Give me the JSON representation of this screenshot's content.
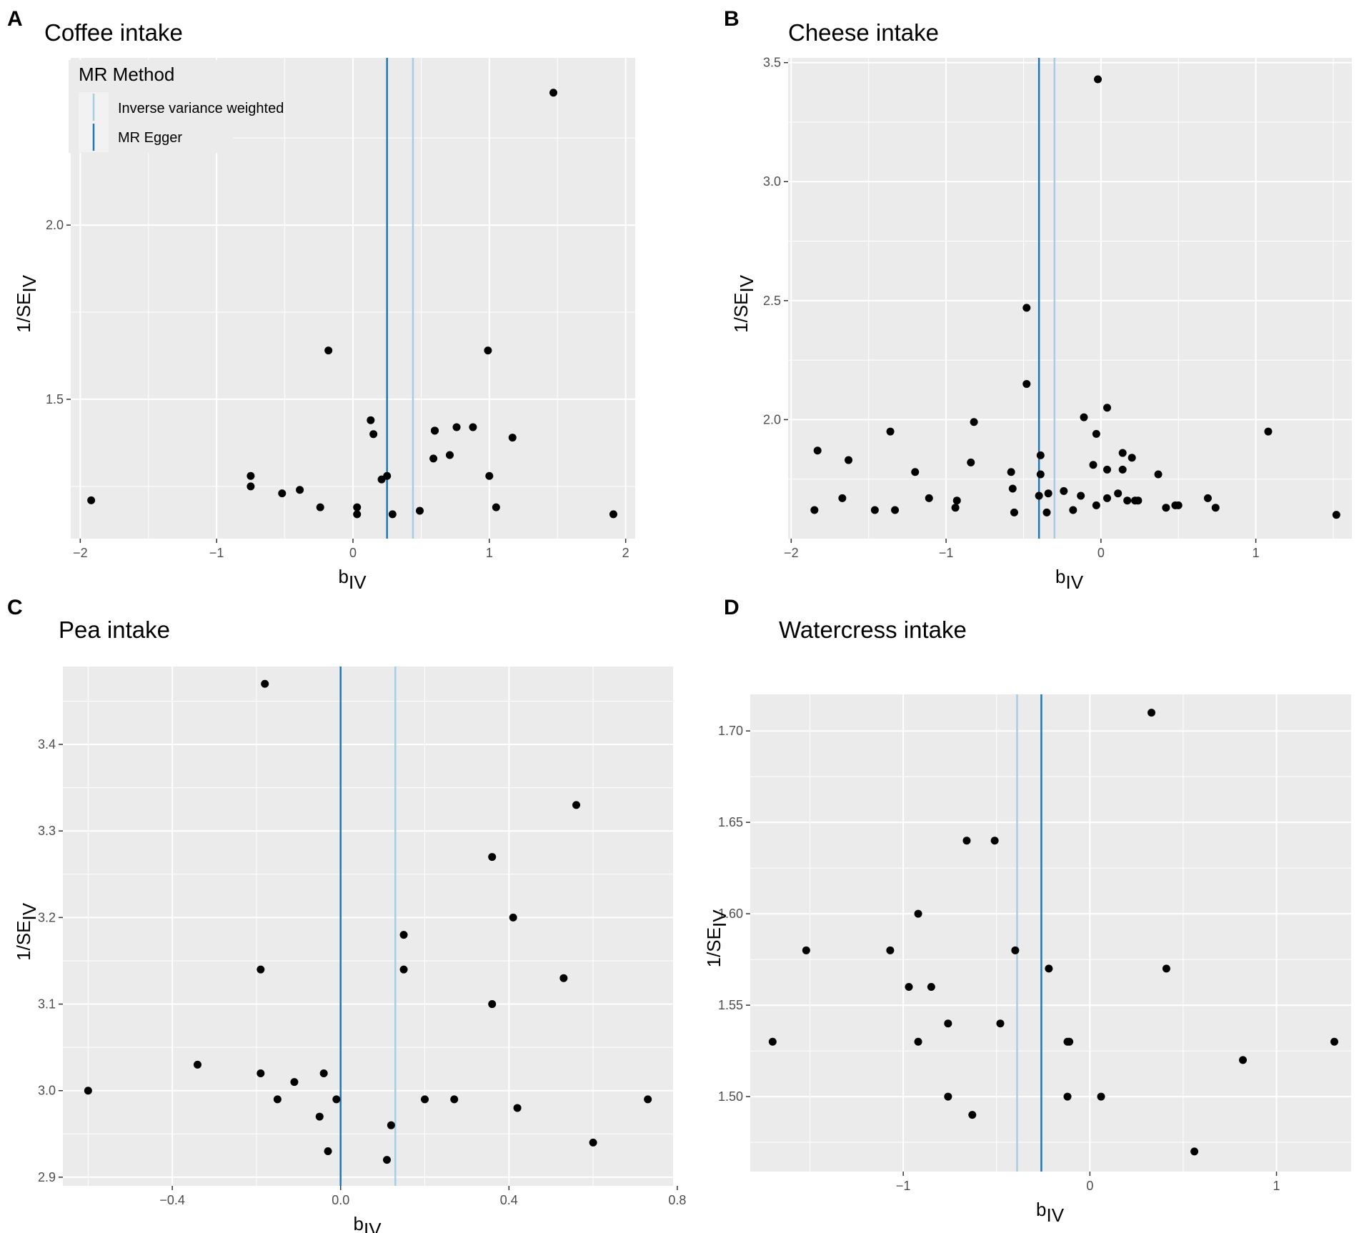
{
  "colors": {
    "panel_bg": "#ebebeb",
    "grid": "#ffffff",
    "ivw": "#a6cee3",
    "egger": "#1f78b4",
    "point": "#000000"
  },
  "legend": {
    "title": "MR Method",
    "items": [
      {
        "label": "Inverse variance weighted",
        "color": "#a6cee3"
      },
      {
        "label": "MR Egger",
        "color": "#1f78b4"
      }
    ]
  },
  "chart_data": [
    {
      "type": "scatter",
      "panel": "A",
      "title": "Coffee intake",
      "xlabel_main": "b",
      "xlabel_sub": "IV",
      "ylabel_main": "1/SE",
      "ylabel_sub": "IV",
      "xlim": [
        -2.07,
        2.07
      ],
      "ylim": [
        1.1,
        2.48
      ],
      "xticks": [
        -2,
        -1,
        0,
        1,
        2
      ],
      "xtick_labels": [
        "−2",
        "−1",
        "0",
        "1",
        "2"
      ],
      "yticks": [
        1.5,
        2.0
      ],
      "ytick_labels": [
        "1.5",
        "2.0"
      ],
      "lines": {
        "ivw": 0.44,
        "egger": 0.25
      },
      "points": [
        [
          -1.92,
          1.21
        ],
        [
          -0.75,
          1.28
        ],
        [
          -0.75,
          1.25
        ],
        [
          -0.52,
          1.23
        ],
        [
          -0.39,
          1.24
        ],
        [
          -0.24,
          1.19
        ],
        [
          -0.18,
          1.64
        ],
        [
          0.03,
          1.19
        ],
        [
          0.03,
          1.17
        ],
        [
          0.13,
          1.44
        ],
        [
          0.15,
          1.4
        ],
        [
          0.21,
          1.27
        ],
        [
          0.25,
          1.28
        ],
        [
          0.29,
          1.17
        ],
        [
          0.49,
          1.18
        ],
        [
          0.59,
          1.33
        ],
        [
          0.6,
          1.41
        ],
        [
          0.6,
          1.41
        ],
        [
          0.71,
          1.34
        ],
        [
          0.76,
          1.42
        ],
        [
          0.88,
          1.42
        ],
        [
          0.99,
          1.64
        ],
        [
          1.0,
          1.28
        ],
        [
          1.05,
          1.19
        ],
        [
          1.17,
          1.39
        ],
        [
          1.47,
          2.38
        ],
        [
          1.91,
          1.17
        ]
      ]
    },
    {
      "type": "scatter",
      "panel": "B",
      "title": "Cheese intake",
      "xlabel_main": "b",
      "xlabel_sub": "IV",
      "ylabel_main": "1/SE",
      "ylabel_sub": "IV",
      "xlim": [
        -2.02,
        1.62
      ],
      "ylim": [
        1.5,
        3.52
      ],
      "xticks": [
        -2,
        -1,
        0,
        1
      ],
      "xtick_labels": [
        "−2",
        "−1",
        "0",
        "1"
      ],
      "yticks": [
        2.0,
        2.5,
        3.0,
        3.5
      ],
      "ytick_labels": [
        "2.0",
        "2.5",
        "3.0",
        "3.5"
      ],
      "lines": {
        "ivw": -0.3,
        "egger": -0.4
      },
      "points": [
        [
          -1.85,
          1.62
        ],
        [
          -1.83,
          1.87
        ],
        [
          -1.63,
          1.83
        ],
        [
          -1.67,
          1.67
        ],
        [
          -1.46,
          1.62
        ],
        [
          -1.36,
          1.95
        ],
        [
          -1.33,
          1.62
        ],
        [
          -1.2,
          1.78
        ],
        [
          -1.11,
          1.67
        ],
        [
          -0.94,
          1.63
        ],
        [
          -0.93,
          1.66
        ],
        [
          -0.84,
          1.82
        ],
        [
          -0.82,
          1.99
        ],
        [
          -0.58,
          1.78
        ],
        [
          -0.57,
          1.71
        ],
        [
          -0.56,
          1.61
        ],
        [
          -0.48,
          2.47
        ],
        [
          -0.48,
          2.15
        ],
        [
          -0.4,
          1.68
        ],
        [
          -0.39,
          1.77
        ],
        [
          -0.39,
          1.85
        ],
        [
          -0.35,
          1.61
        ],
        [
          -0.34,
          1.69
        ],
        [
          -0.24,
          1.7
        ],
        [
          -0.18,
          1.62
        ],
        [
          -0.13,
          1.68
        ],
        [
          -0.11,
          2.01
        ],
        [
          -0.05,
          1.81
        ],
        [
          -0.03,
          1.64
        ],
        [
          -0.03,
          1.94
        ],
        [
          -0.02,
          3.43
        ],
        [
          0.04,
          1.67
        ],
        [
          0.04,
          1.79
        ],
        [
          0.04,
          2.05
        ],
        [
          0.11,
          1.69
        ],
        [
          0.14,
          1.86
        ],
        [
          0.14,
          1.79
        ],
        [
          0.17,
          1.66
        ],
        [
          0.2,
          1.84
        ],
        [
          0.22,
          1.66
        ],
        [
          0.24,
          1.66
        ],
        [
          0.37,
          1.77
        ],
        [
          0.42,
          1.63
        ],
        [
          0.48,
          1.64
        ],
        [
          0.5,
          1.64
        ],
        [
          0.69,
          1.67
        ],
        [
          0.74,
          1.63
        ],
        [
          1.08,
          1.95
        ],
        [
          1.52,
          1.6
        ]
      ]
    },
    {
      "type": "scatter",
      "panel": "C",
      "title": "Pea intake",
      "xlabel_main": "b",
      "xlabel_sub": "IV",
      "ylabel_main": "1/SE",
      "ylabel_sub": "IV",
      "xlim": [
        -0.66,
        0.79
      ],
      "ylim": [
        2.89,
        3.49
      ],
      "xticks": [
        -0.4,
        0.0,
        0.4,
        0.8
      ],
      "xtick_labels": [
        "−0.4",
        "0.0",
        "0.4",
        "0.8"
      ],
      "yticks": [
        2.9,
        3.0,
        3.1,
        3.2,
        3.3,
        3.4
      ],
      "ytick_labels": [
        "2.9",
        "3.0",
        "3.1",
        "3.2",
        "3.3",
        "3.4"
      ],
      "lines": {
        "ivw": 0.13,
        "egger": 0.0
      },
      "points": [
        [
          -0.6,
          3.0
        ],
        [
          -0.34,
          3.03
        ],
        [
          -0.18,
          3.47
        ],
        [
          -0.19,
          3.14
        ],
        [
          -0.19,
          3.02
        ],
        [
          -0.15,
          2.99
        ],
        [
          -0.11,
          3.01
        ],
        [
          -0.05,
          2.97
        ],
        [
          -0.04,
          3.02
        ],
        [
          -0.03,
          2.93
        ],
        [
          -0.01,
          2.99
        ],
        [
          0.11,
          2.92
        ],
        [
          0.12,
          2.96
        ],
        [
          0.15,
          3.14
        ],
        [
          0.15,
          3.18
        ],
        [
          0.2,
          2.99
        ],
        [
          0.27,
          2.99
        ],
        [
          0.36,
          3.1
        ],
        [
          0.36,
          3.27
        ],
        [
          0.41,
          3.2
        ],
        [
          0.42,
          2.98
        ],
        [
          0.53,
          3.13
        ],
        [
          0.56,
          3.33
        ],
        [
          0.6,
          2.94
        ],
        [
          0.73,
          2.99
        ]
      ]
    },
    {
      "type": "scatter",
      "panel": "D",
      "title": "Watercress intake",
      "xlabel_main": "b",
      "xlabel_sub": "IV",
      "ylabel_main": "1/SE",
      "ylabel_sub": "IV",
      "xlim": [
        -1.82,
        1.4
      ],
      "ylim": [
        1.459,
        1.72
      ],
      "xticks": [
        -1,
        0,
        1
      ],
      "xtick_labels": [
        "−1",
        "0",
        "1"
      ],
      "yticks": [
        1.5,
        1.55,
        1.6,
        1.65,
        1.7
      ],
      "ytick_labels": [
        "1.50",
        "1.55",
        "1.60",
        "1.65",
        "1.70"
      ],
      "lines": {
        "ivw": -0.39,
        "egger": -0.26
      },
      "points": [
        [
          -1.7,
          1.53
        ],
        [
          -1.52,
          1.58
        ],
        [
          -1.07,
          1.58
        ],
        [
          -0.97,
          1.56
        ],
        [
          -0.92,
          1.6
        ],
        [
          -0.92,
          1.53
        ],
        [
          -0.85,
          1.56
        ],
        [
          -0.76,
          1.54
        ],
        [
          -0.76,
          1.5
        ],
        [
          -0.66,
          1.64
        ],
        [
          -0.63,
          1.49
        ],
        [
          -0.51,
          1.64
        ],
        [
          -0.48,
          1.54
        ],
        [
          -0.4,
          1.58
        ],
        [
          -0.22,
          1.57
        ],
        [
          -0.12,
          1.53
        ],
        [
          -0.11,
          1.53
        ],
        [
          -0.12,
          1.5
        ],
        [
          0.06,
          1.5
        ],
        [
          0.33,
          1.71
        ],
        [
          0.41,
          1.57
        ],
        [
          0.56,
          1.47
        ],
        [
          0.82,
          1.52
        ],
        [
          1.31,
          1.53
        ]
      ]
    }
  ]
}
